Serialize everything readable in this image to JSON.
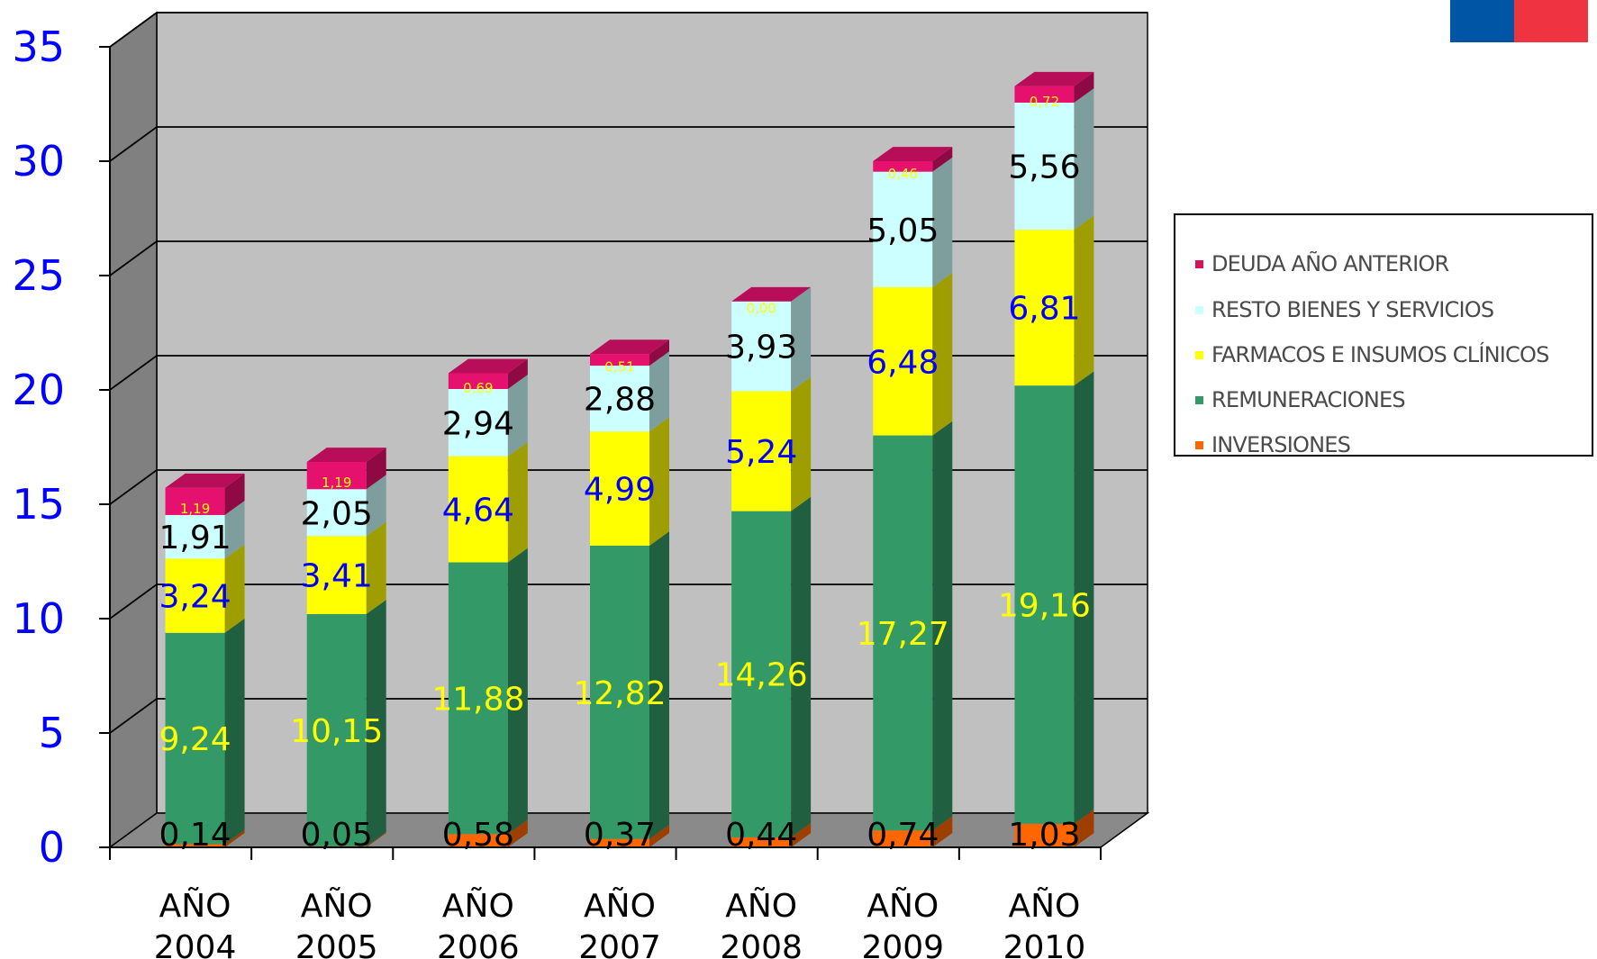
{
  "chart_data": {
    "type": "bar",
    "stacked": true,
    "three_d": true,
    "categories": [
      "AÑO\n2004",
      "AÑO\n2005",
      "AÑO\n2006",
      "AÑO\n2007",
      "AÑO\n2008",
      "AÑO\n2009",
      "AÑO\n2010"
    ],
    "y_ticks": [
      "0",
      "5",
      "10",
      "15",
      "20",
      "25",
      "30",
      "35"
    ],
    "ylim": [
      0,
      35
    ],
    "grid": true,
    "legend_position": "right",
    "series": [
      {
        "name": "INVERSIONES",
        "values": [
          0.14,
          0.05,
          0.58,
          0.37,
          0.44,
          0.74,
          1.03
        ],
        "labels": [
          "0,14",
          "0,05",
          "0,58",
          "0,37",
          "0,44",
          "0,74",
          "1,03"
        ]
      },
      {
        "name": "REMUNERACIONES",
        "values": [
          9.24,
          10.15,
          11.88,
          12.82,
          14.26,
          17.27,
          19.16
        ],
        "labels": [
          "9,24",
          "10,15",
          "11,88",
          "12,82",
          "14,26",
          "17,27",
          "19,16"
        ]
      },
      {
        "name": "FARMACOS E INSUMOS CLÍNICOS",
        "values": [
          3.24,
          3.41,
          4.64,
          4.99,
          5.24,
          6.48,
          6.81
        ],
        "labels": [
          "3,24",
          "3,41",
          "4,64",
          "4,99",
          "5,24",
          "6,48",
          "6,81"
        ]
      },
      {
        "name": "RESTO BIENES Y SERVICIOS",
        "values": [
          1.91,
          2.05,
          2.94,
          2.88,
          3.93,
          5.05,
          5.56
        ],
        "labels": [
          "1,91",
          "2,05",
          "2,94",
          "2,88",
          "3,93",
          "5,05",
          "5,56"
        ]
      },
      {
        "name": "DEUDA AÑO ANTERIOR",
        "values": [
          1.19,
          1.19,
          0.69,
          0.51,
          0.0,
          0.46,
          0.72
        ],
        "labels": [
          "1,19",
          "1,19",
          "0,69",
          "0,51",
          "0,00",
          "0,46",
          "0,72"
        ]
      }
    ]
  },
  "legend": {
    "items": [
      {
        "label": "DEUDA AÑO ANTERIOR",
        "color": "#d4145a"
      },
      {
        "label": "RESTO BIENES Y SERVICIOS",
        "color": "#ccffff"
      },
      {
        "label": "FARMACOS E INSUMOS CLÍNICOS",
        "color": "#ffff00"
      },
      {
        "label": "REMUNERACIONES",
        "color": "#339966"
      },
      {
        "label": "INVERSIONES",
        "color": "#ff6600"
      }
    ]
  },
  "colors": {
    "inversiones": "#ff6600",
    "remuneraciones": "#339966",
    "farmacos": "#ffff00",
    "resto": "#ccffff",
    "deuda": "#e6106e",
    "wall": "#c0c0c0",
    "side_wall": "#808080",
    "axis_text": "#0000ff",
    "flag_blue": "#0055a4",
    "flag_red": "#ef3340"
  }
}
